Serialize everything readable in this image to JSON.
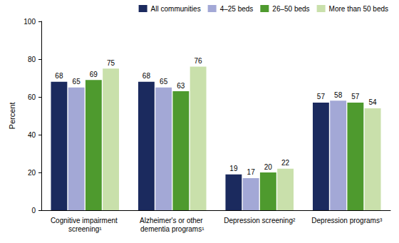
{
  "chart_data": {
    "type": "bar",
    "categories": [
      "Cognitive impairment screening¹",
      "Alzheimer's or other dementia programs¹",
      "Depression screening²",
      "Depression programs³"
    ],
    "series": [
      {
        "name": "All communities",
        "color": "#1b2a5e",
        "values": [
          68,
          68,
          19,
          57
        ]
      },
      {
        "name": "4–25 beds",
        "color": "#a3a8d6",
        "values": [
          65,
          65,
          17,
          58
        ]
      },
      {
        "name": "26–50 beds",
        "color": "#4e9a2e",
        "values": [
          69,
          63,
          20,
          57
        ]
      },
      {
        "name": "More than 50 beds",
        "color": "#c9e0ab",
        "values": [
          75,
          76,
          22,
          54
        ]
      }
    ],
    "ylabel": "Percent",
    "ylim": [
      0,
      100
    ],
    "yticks": [
      0,
      20,
      40,
      60,
      80,
      100
    ],
    "grid": false,
    "legend": "top-right",
    "data_labels": true
  }
}
